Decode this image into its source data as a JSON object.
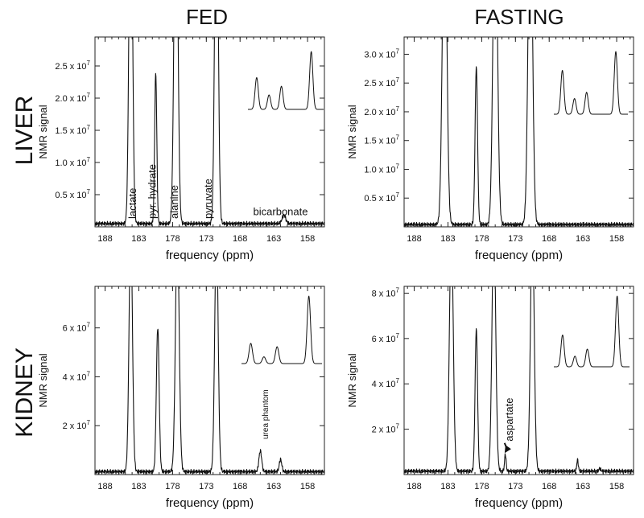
{
  "figure": {
    "col_titles": [
      "FED",
      "FASTING"
    ],
    "row_titles": [
      "LIVER",
      "KIDNEY"
    ]
  },
  "chart_data": [
    {
      "id": "liver-fed",
      "type": "line",
      "row": "LIVER",
      "col": "FED",
      "xlabel": "frequency (ppm)",
      "ylabel": "NMR signal",
      "xlim": [
        189.5,
        155.5
      ],
      "ylim": [
        0,
        2.95
      ],
      "xticks": [
        "188",
        "183",
        "178",
        "173",
        "168",
        "163",
        "158"
      ],
      "xtick_values": [
        188,
        183,
        178,
        173,
        168,
        163,
        158
      ],
      "yticks": [
        {
          "label": "0.5 x 10",
          "exp": "7",
          "value": 0.5
        },
        {
          "label": "1.0 x 10",
          "exp": "7",
          "value": 1.0
        },
        {
          "label": "1.5 x 10",
          "exp": "7",
          "value": 1.5
        },
        {
          "label": "2.0 x 10",
          "exp": "7",
          "value": 2.0
        },
        {
          "label": "2.5 x 10",
          "exp": "7",
          "value": 2.5
        }
      ],
      "baseline": 0.05,
      "peaks": [
        {
          "ppm": 184.2,
          "height": 6.0,
          "width": 0.55,
          "label": "lactate"
        },
        {
          "ppm": 180.5,
          "height": 2.35,
          "width": 0.35,
          "label": "pyr. hydrate"
        },
        {
          "ppm": 177.5,
          "height": 6.0,
          "width": 0.6,
          "label": "alanine"
        },
        {
          "ppm": 171.5,
          "height": 6.0,
          "width": 0.55,
          "label": "pyruvate"
        },
        {
          "ppm": 161.5,
          "height": 0.13,
          "width": 0.6,
          "label": "bicarbonate"
        }
      ],
      "labels": [
        {
          "text": "lactate",
          "ppm": 183.9,
          "y": 0.05
        },
        {
          "text": "pyr. hydrate",
          "ppm": 181.0,
          "y": 0.05
        },
        {
          "text": "alanine",
          "ppm": 177.7,
          "y": 0.05
        },
        {
          "text": "pyruvate",
          "ppm": 172.7,
          "y": 0.05
        },
        {
          "text": "bicarbonate",
          "ppm": 162.0,
          "y": 0.18,
          "horizontal": true
        }
      ],
      "inset": {
        "values": [
          0.55,
          0.25,
          0.4,
          1.0
        ],
        "spacing": 1.0,
        "baseline": 0.0
      }
    },
    {
      "id": "liver-fasting",
      "type": "line",
      "row": "LIVER",
      "col": "FASTING",
      "xlabel": "frequency (ppm)",
      "ylabel": "NMR signal",
      "xlim": [
        189.5,
        155.5
      ],
      "ylim": [
        0,
        3.3
      ],
      "xticks": [
        "188",
        "183",
        "178",
        "173",
        "168",
        "163",
        "158"
      ],
      "xtick_values": [
        188,
        183,
        178,
        173,
        168,
        163,
        158
      ],
      "yticks": [
        {
          "label": "0.5 x 10",
          "exp": "7",
          "value": 0.5
        },
        {
          "label": "1.0 x 10",
          "exp": "7",
          "value": 1.0
        },
        {
          "label": "1.5 x 10",
          "exp": "7",
          "value": 1.5
        },
        {
          "label": "2.0 x 10",
          "exp": "7",
          "value": 2.0
        },
        {
          "label": "2.5 x 10",
          "exp": "7",
          "value": 2.5
        },
        {
          "label": "3.0 x 10",
          "exp": "7",
          "value": 3.0
        }
      ],
      "baseline": 0.04,
      "peaks": [
        {
          "ppm": 183.5,
          "height": 6.0,
          "width": 0.7
        },
        {
          "ppm": 178.8,
          "height": 2.75,
          "width": 0.4
        },
        {
          "ppm": 176.0,
          "height": 6.0,
          "width": 0.7
        },
        {
          "ppm": 170.8,
          "height": 6.0,
          "width": 0.7
        }
      ],
      "labels": [],
      "inset": {
        "values": [
          0.7,
          0.25,
          0.35,
          1.0
        ],
        "spacing": 1.0,
        "baseline": 0.0
      }
    },
    {
      "id": "kidney-fed",
      "type": "line",
      "row": "KIDNEY",
      "col": "FED",
      "xlabel": "frequency (ppm)",
      "ylabel": "NMR signal",
      "xlim": [
        189.5,
        155.5
      ],
      "ylim": [
        0,
        7.7
      ],
      "xticks": [
        "188",
        "183",
        "178",
        "173",
        "168",
        "163",
        "158"
      ],
      "xtick_values": [
        188,
        183,
        178,
        173,
        168,
        163,
        158
      ],
      "yticks": [
        {
          "label": "2 x 10",
          "exp": "7",
          "value": 2
        },
        {
          "label": "4 x 10",
          "exp": "7",
          "value": 4
        },
        {
          "label": "6 x 10",
          "exp": "7",
          "value": 6
        }
      ],
      "baseline": 0.12,
      "peaks": [
        {
          "ppm": 184.2,
          "height": 10.0,
          "width": 0.55
        },
        {
          "ppm": 180.2,
          "height": 5.9,
          "width": 0.45
        },
        {
          "ppm": 177.3,
          "height": 10.0,
          "width": 0.6
        },
        {
          "ppm": 171.5,
          "height": 10.0,
          "width": 0.55
        },
        {
          "ppm": 165.0,
          "height": 0.85,
          "width": 0.45
        },
        {
          "ppm": 162.0,
          "height": 0.5,
          "width": 0.4
        }
      ],
      "labels": [
        {
          "text": "urea phantom",
          "ppm": 164.3,
          "y": 1.25,
          "small": true
        }
      ],
      "inset": {
        "values": [
          0.3,
          0.1,
          0.25,
          1.0
        ],
        "spacing": 1.0,
        "baseline": 0.0
      }
    },
    {
      "id": "kidney-fasting",
      "type": "line",
      "row": "KIDNEY",
      "col": "FASTING",
      "xlabel": "frequency (ppm)",
      "ylabel": "NMR signal",
      "xlim": [
        189.5,
        155.5
      ],
      "ylim": [
        0,
        8.3
      ],
      "xticks": [
        "188",
        "183",
        "178",
        "173",
        "168",
        "163",
        "158"
      ],
      "xtick_values": [
        188,
        183,
        178,
        173,
        168,
        163,
        158
      ],
      "yticks": [
        {
          "label": "2 x 10",
          "exp": "7",
          "value": 2
        },
        {
          "label": "4 x 10",
          "exp": "7",
          "value": 4
        },
        {
          "label": "6 x 10",
          "exp": "7",
          "value": 6
        },
        {
          "label": "8 x 10",
          "exp": "7",
          "value": 8
        }
      ],
      "baseline": 0.15,
      "peaks": [
        {
          "ppm": 182.5,
          "height": 11.0,
          "width": 0.6
        },
        {
          "ppm": 178.8,
          "height": 6.3,
          "width": 0.4
        },
        {
          "ppm": 176.2,
          "height": 11.0,
          "width": 0.6
        },
        {
          "ppm": 174.5,
          "height": 0.75,
          "width": 0.25
        },
        {
          "ppm": 170.5,
          "height": 11.0,
          "width": 0.6
        },
        {
          "ppm": 163.8,
          "height": 0.5,
          "width": 0.25
        },
        {
          "ppm": 160.5,
          "height": 0.12,
          "width": 0.3
        }
      ],
      "labels": [
        {
          "text": "aspartate",
          "ppm": 173.9,
          "y": 1.25,
          "arrow_to_ppm": 174.6,
          "arrow_to_y": 0.95
        }
      ],
      "inset": {
        "values": [
          0.45,
          0.15,
          0.25,
          1.0
        ],
        "spacing": 1.0,
        "baseline": 0.0
      }
    }
  ]
}
